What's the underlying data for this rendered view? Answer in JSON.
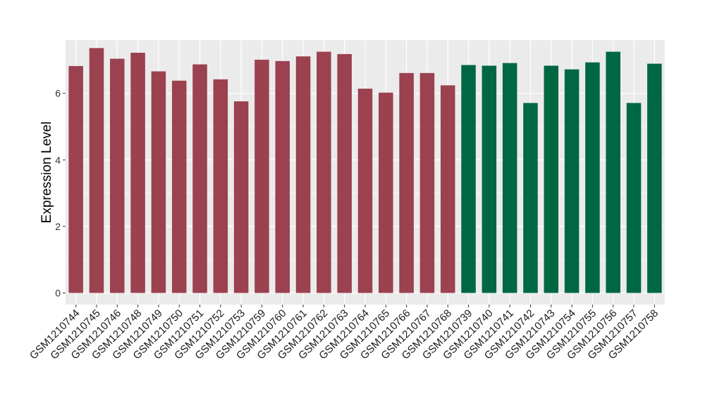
{
  "chart_data": {
    "type": "bar",
    "ylabel": "Expression Level",
    "xlabel": "",
    "ylim": [
      -0.35,
      7.6
    ],
    "yticks": [
      0,
      2,
      4,
      6
    ],
    "grid": true,
    "legend": "none",
    "colors": {
      "group1": "#9b4150",
      "group2": "#006743",
      "panel": "#ebebeb",
      "grid": "#ffffff"
    },
    "categories": [
      "GSM1210744",
      "GSM1210745",
      "GSM1210746",
      "GSM1210748",
      "GSM1210749",
      "GSM1210750",
      "GSM1210751",
      "GSM1210752",
      "GSM1210753",
      "GSM1210759",
      "GSM1210760",
      "GSM1210761",
      "GSM1210762",
      "GSM1210763",
      "GSM1210764",
      "GSM1210765",
      "GSM1210766",
      "GSM1210767",
      "GSM1210768",
      "GSM1210739",
      "GSM1210740",
      "GSM1210741",
      "GSM1210742",
      "GSM1210743",
      "GSM1210754",
      "GSM1210755",
      "GSM1210756",
      "GSM1210757",
      "GSM1210758"
    ],
    "values": [
      6.82,
      7.36,
      7.04,
      7.22,
      6.66,
      6.38,
      6.87,
      6.42,
      5.76,
      7.01,
      6.97,
      7.11,
      7.25,
      7.18,
      6.14,
      6.02,
      6.61,
      6.61,
      6.24,
      6.85,
      6.83,
      6.91,
      5.71,
      6.83,
      6.72,
      6.93,
      7.25,
      5.71,
      6.89
    ],
    "groups": [
      1,
      1,
      1,
      1,
      1,
      1,
      1,
      1,
      1,
      1,
      1,
      1,
      1,
      1,
      1,
      1,
      1,
      1,
      1,
      2,
      2,
      2,
      2,
      2,
      2,
      2,
      2,
      2,
      2
    ]
  }
}
